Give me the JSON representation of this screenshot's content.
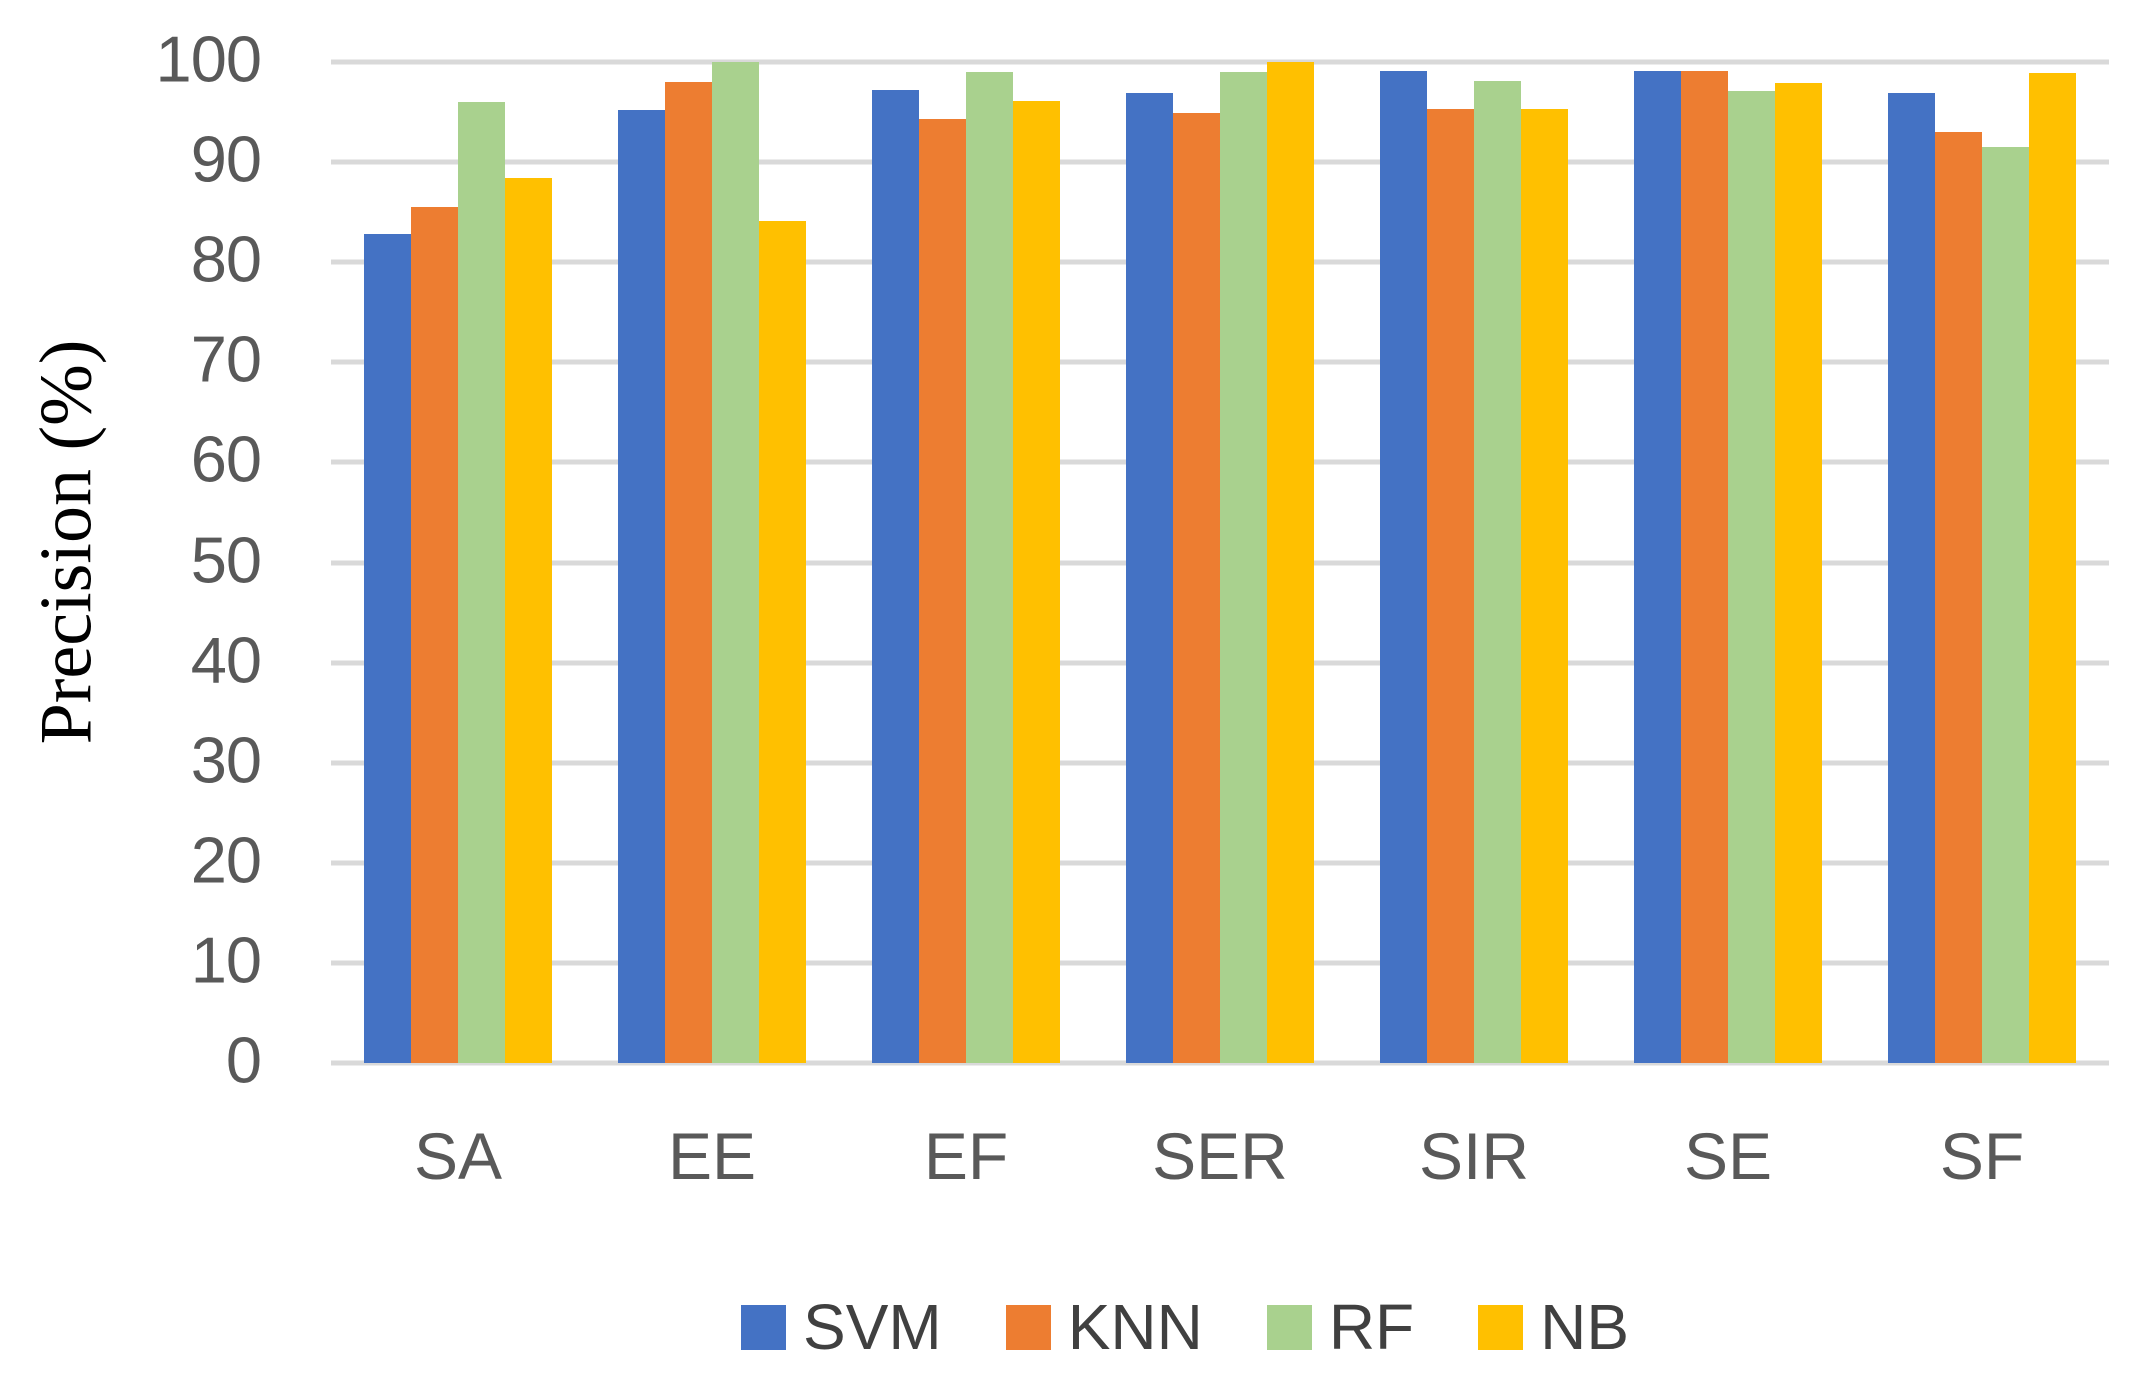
{
  "chart_data": {
    "type": "bar",
    "title": "",
    "xlabel": "",
    "ylabel": "Precision (%)",
    "ylim": [
      0,
      100
    ],
    "yticks": [
      0,
      10,
      20,
      30,
      40,
      50,
      60,
      70,
      80,
      90,
      100
    ],
    "grid": true,
    "legend_position": "bottom",
    "categories": [
      "SA",
      "EE",
      "EF",
      "SER",
      "SIR",
      "SE",
      "SF"
    ],
    "series": [
      {
        "name": "SVM",
        "color": "#4472C4",
        "values": [
          82.8,
          95.2,
          97.2,
          96.9,
          99.1,
          99.1,
          96.9
        ]
      },
      {
        "name": "KNN",
        "color": "#ED7D31",
        "values": [
          85.5,
          98.0,
          94.3,
          94.9,
          95.3,
          99.1,
          93.0
        ]
      },
      {
        "name": "RF",
        "color": "#A9D18E",
        "values": [
          96.0,
          100.0,
          99.0,
          99.0,
          98.1,
          97.1,
          91.5
        ]
      },
      {
        "name": "NB",
        "color": "#FFC000",
        "values": [
          88.4,
          84.1,
          96.1,
          100.0,
          95.3,
          97.9,
          98.9
        ]
      }
    ],
    "colors": {
      "gridline": "#D9D9D9",
      "axis_line": "#D9D9D9",
      "tick_label": "#595959",
      "category_label": "#595959",
      "legend_label": "#404040",
      "axis_title": "#000000"
    }
  }
}
